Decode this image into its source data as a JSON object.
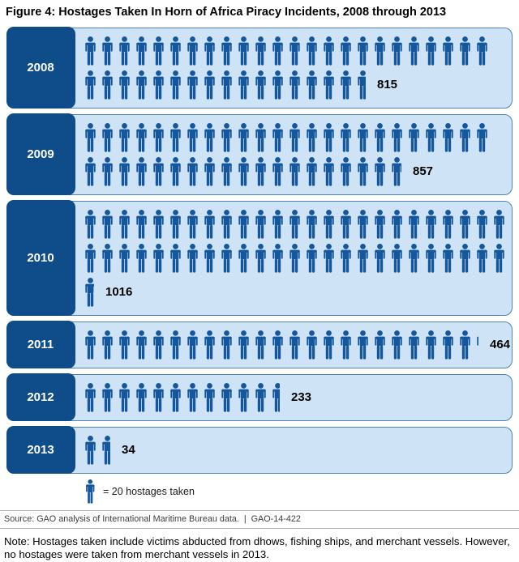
{
  "title": "Figure 4: Hostages Taken In Horn of Africa Piracy Incidents, 2008 through 2013",
  "colors": {
    "year_box_fill": "#0e4c8a",
    "icon_blue": "#15579d",
    "panel_fill": "#cfe3f6",
    "panel_border": "#5083b8",
    "year_text": "#ffffff",
    "value_text": "#000000"
  },
  "legend": {
    "icon": "person-icon",
    "label": "= 20 hostages taken"
  },
  "source_line": "Source: GAO analysis of International Maritime Bureau data.  |  GAO-14-422",
  "note": "Note: Hostages taken include victims abducted from dhows, fishing ships, and merchant vessels. However, no hostages were taken from merchant vessels in 2013.",
  "chart_data": {
    "type": "bar",
    "subtype": "pictogram",
    "title": "Figure 4: Hostages Taken In Horn of Africa Piracy Incidents, 2008 through 2013",
    "categories": [
      "2008",
      "2009",
      "2010",
      "2011",
      "2012",
      "2013"
    ],
    "values": [
      815,
      857,
      1016,
      464,
      233,
      34
    ],
    "icon_value": 20,
    "ylabel": "Hostages taken",
    "legend_label": "= 20 hostages taken",
    "rows": [
      {
        "year": "2008",
        "value": "815",
        "icon_rows": [
          24,
          16.75
        ]
      },
      {
        "year": "2009",
        "value": "857",
        "icon_rows": [
          24,
          18.85
        ]
      },
      {
        "year": "2010",
        "value": "1016",
        "icon_rows": [
          25,
          25,
          0.8
        ]
      },
      {
        "year": "2011",
        "value": "464",
        "icon_rows": [
          23.2
        ]
      },
      {
        "year": "2012",
        "value": "233",
        "icon_rows": [
          11.65
        ]
      },
      {
        "year": "2013",
        "value": "34",
        "icon_rows": [
          1.7
        ]
      }
    ]
  }
}
